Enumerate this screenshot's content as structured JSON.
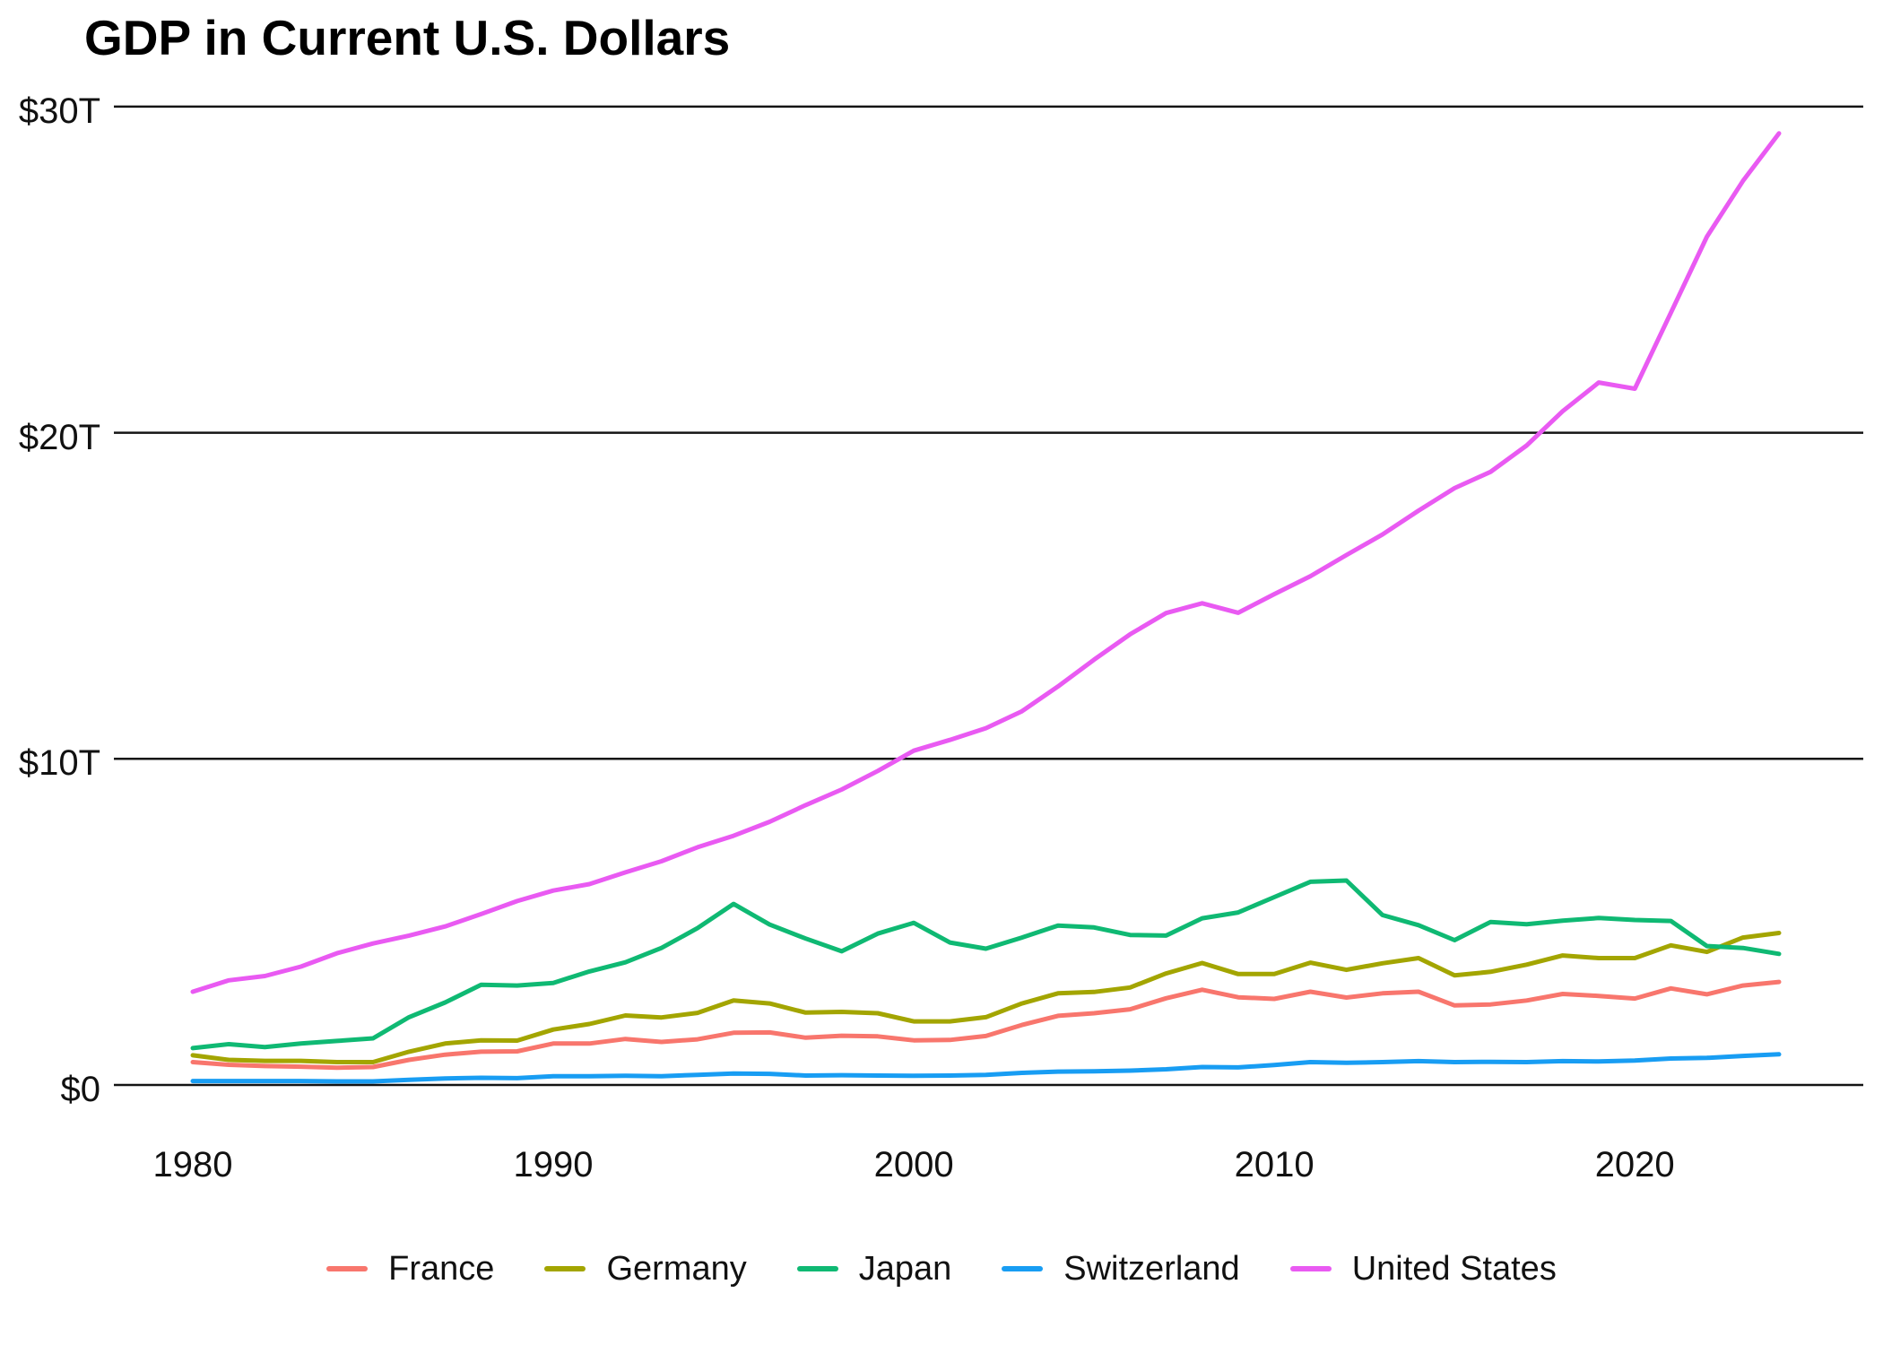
{
  "page_title": "GDP in Current U.S. Dollars",
  "chart_data": {
    "type": "line",
    "title": "GDP in Current U.S. Dollars",
    "unit": "trillions of current U.S. dollars",
    "grid": "horizontal-only",
    "legend_position": "bottom",
    "x": [
      1980,
      1981,
      1982,
      1983,
      1984,
      1985,
      1986,
      1987,
      1988,
      1989,
      1990,
      1991,
      1992,
      1993,
      1994,
      1995,
      1996,
      1997,
      1998,
      1999,
      2000,
      2001,
      2002,
      2003,
      2004,
      2005,
      2006,
      2007,
      2008,
      2009,
      2010,
      2011,
      2012,
      2013,
      2014,
      2015,
      2016,
      2017,
      2018,
      2019,
      2020,
      2021,
      2022,
      2023,
      2024
    ],
    "x_axis": {
      "ticks": [
        1980,
        1990,
        2000,
        2010,
        2020
      ],
      "tick_labels": [
        "1980",
        "1990",
        "2000",
        "2010",
        "2020"
      ],
      "range": [
        1980,
        2024
      ]
    },
    "y_axis": {
      "ticks": [
        0,
        10,
        20,
        30
      ],
      "tick_labels": [
        "$0",
        "$10T",
        "$20T",
        "$30T"
      ],
      "range": [
        0,
        30
      ]
    },
    "series": [
      {
        "name": "France",
        "color": "#F8766D",
        "values": [
          0.7,
          0.62,
          0.58,
          0.56,
          0.53,
          0.55,
          0.77,
          0.93,
          1.02,
          1.03,
          1.27,
          1.27,
          1.41,
          1.32,
          1.4,
          1.6,
          1.61,
          1.45,
          1.51,
          1.49,
          1.37,
          1.38,
          1.5,
          1.84,
          2.12,
          2.2,
          2.32,
          2.66,
          2.92,
          2.69,
          2.64,
          2.86,
          2.68,
          2.81,
          2.86,
          2.44,
          2.47,
          2.59,
          2.79,
          2.73,
          2.65,
          2.96,
          2.78,
          3.05,
          3.16
        ]
      },
      {
        "name": "Germany",
        "color": "#A3A500",
        "values": [
          0.91,
          0.77,
          0.74,
          0.74,
          0.7,
          0.7,
          1.02,
          1.27,
          1.37,
          1.36,
          1.7,
          1.87,
          2.13,
          2.07,
          2.21,
          2.59,
          2.5,
          2.22,
          2.24,
          2.2,
          1.95,
          1.95,
          2.08,
          2.5,
          2.81,
          2.85,
          2.99,
          3.42,
          3.74,
          3.4,
          3.4,
          3.75,
          3.53,
          3.73,
          3.89,
          3.36,
          3.47,
          3.69,
          3.97,
          3.89,
          3.89,
          4.28,
          4.08,
          4.52,
          4.66
        ]
      },
      {
        "name": "Japan",
        "color": "#0FB973",
        "values": [
          1.13,
          1.25,
          1.16,
          1.27,
          1.35,
          1.43,
          2.08,
          2.53,
          3.07,
          3.05,
          3.13,
          3.48,
          3.76,
          4.2,
          4.81,
          5.55,
          4.92,
          4.49,
          4.1,
          4.64,
          4.97,
          4.37,
          4.18,
          4.52,
          4.89,
          4.83,
          4.6,
          4.58,
          5.11,
          5.29,
          5.76,
          6.23,
          6.27,
          5.21,
          4.9,
          4.44,
          5.0,
          4.93,
          5.04,
          5.12,
          5.06,
          5.03,
          4.26,
          4.2,
          4.02
        ]
      },
      {
        "name": "Switzerland",
        "color": "#189DF3",
        "values": [
          0.12,
          0.12,
          0.12,
          0.12,
          0.11,
          0.11,
          0.16,
          0.2,
          0.22,
          0.21,
          0.27,
          0.27,
          0.28,
          0.27,
          0.31,
          0.35,
          0.34,
          0.29,
          0.3,
          0.29,
          0.28,
          0.29,
          0.31,
          0.37,
          0.41,
          0.42,
          0.44,
          0.48,
          0.55,
          0.54,
          0.61,
          0.7,
          0.68,
          0.7,
          0.73,
          0.7,
          0.71,
          0.7,
          0.73,
          0.72,
          0.75,
          0.81,
          0.83,
          0.89,
          0.94
        ]
      },
      {
        "name": "United States",
        "color": "#E95AF2",
        "values": [
          2.86,
          3.21,
          3.34,
          3.63,
          4.04,
          4.34,
          4.58,
          4.86,
          5.24,
          5.64,
          5.96,
          6.16,
          6.52,
          6.86,
          7.29,
          7.64,
          8.07,
          8.58,
          9.06,
          9.63,
          10.25,
          10.58,
          10.94,
          11.46,
          12.22,
          13.04,
          13.82,
          14.47,
          14.77,
          14.48,
          15.05,
          15.6,
          16.25,
          16.88,
          17.61,
          18.3,
          18.8,
          19.61,
          20.66,
          21.54,
          21.35,
          23.68,
          26.01,
          27.72,
          29.18
        ]
      }
    ]
  }
}
